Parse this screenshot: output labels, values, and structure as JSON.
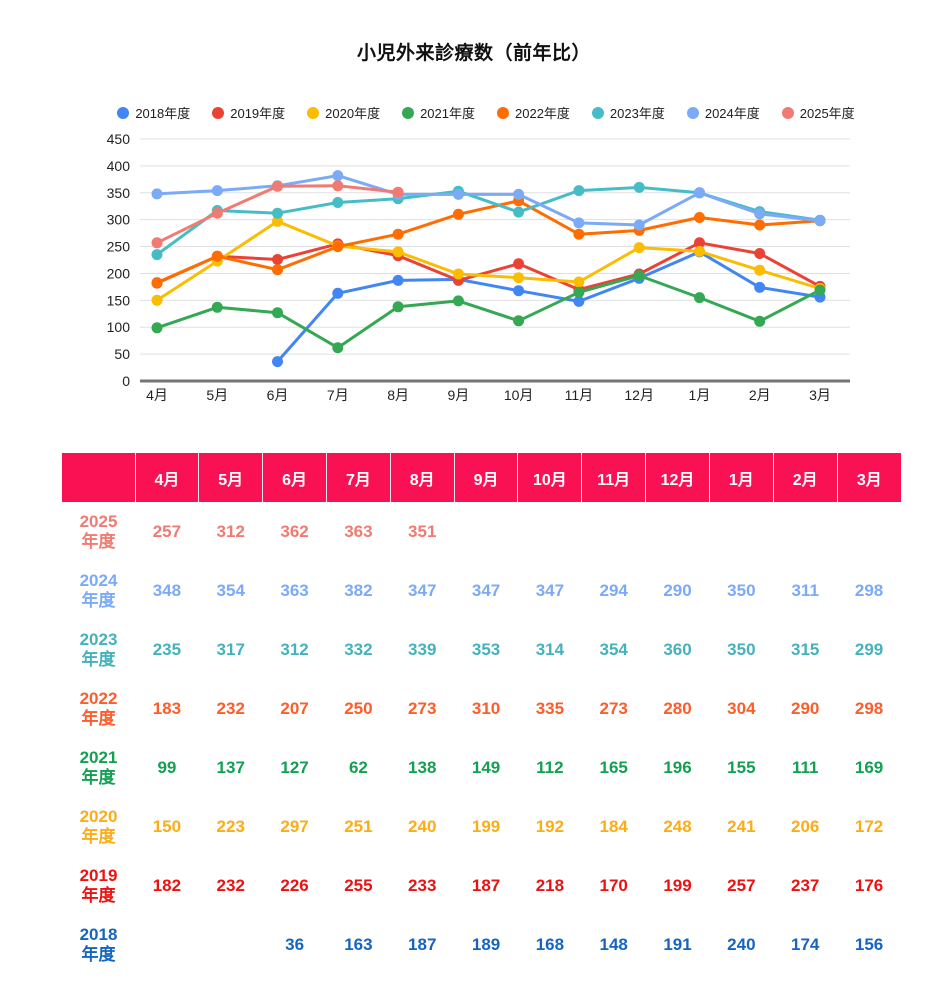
{
  "title": "小児外来診療数（前年比）",
  "chart_data": {
    "type": "line",
    "title": "小児外来診療数（前年比）",
    "categories": [
      "4月",
      "5月",
      "6月",
      "7月",
      "8月",
      "9月",
      "10月",
      "11月",
      "12月",
      "1月",
      "2月",
      "3月"
    ],
    "series": [
      {
        "name": "2018年度",
        "color": "#4285F4",
        "table_color": "#1565C0",
        "values": [
          null,
          null,
          36,
          163,
          187,
          189,
          168,
          148,
          191,
          240,
          174,
          156
        ]
      },
      {
        "name": "2019年度",
        "color": "#EA4335",
        "table_color": "#EE1111",
        "values": [
          182,
          232,
          226,
          255,
          233,
          187,
          218,
          170,
          199,
          257,
          237,
          176
        ]
      },
      {
        "name": "2020年度",
        "color": "#FBBC04",
        "table_color": "#FBAD18",
        "values": [
          150,
          223,
          297,
          251,
          240,
          199,
          192,
          184,
          248,
          241,
          206,
          172
        ]
      },
      {
        "name": "2021年度",
        "color": "#34A853",
        "table_color": "#12A053",
        "values": [
          99,
          137,
          127,
          62,
          138,
          149,
          112,
          165,
          196,
          155,
          111,
          169
        ]
      },
      {
        "name": "2022年度",
        "color": "#FF6D01",
        "table_color": "#FB5D2B",
        "values": [
          183,
          232,
          207,
          250,
          273,
          310,
          335,
          273,
          280,
          304,
          290,
          298
        ]
      },
      {
        "name": "2023年度",
        "color": "#46BDC6",
        "table_color": "#44B2BC",
        "values": [
          235,
          317,
          312,
          332,
          339,
          353,
          314,
          354,
          360,
          350,
          315,
          299
        ]
      },
      {
        "name": "2024年度",
        "color": "#7BAAF7",
        "table_color": "#7BAAF7",
        "values": [
          348,
          354,
          363,
          382,
          347,
          347,
          347,
          294,
          290,
          350,
          311,
          298
        ]
      },
      {
        "name": "2025年度",
        "color": "#F07B72",
        "table_color": "#F07B72",
        "values": [
          257,
          312,
          362,
          363,
          351,
          null,
          null,
          null,
          null,
          null,
          null,
          null
        ]
      }
    ],
    "ylim": [
      0,
      450
    ],
    "y_ticks": [
      0,
      50,
      100,
      150,
      200,
      250,
      300,
      350,
      400,
      450
    ],
    "grid": true,
    "legend_position": "top",
    "xlabel": "",
    "ylabel": ""
  },
  "table": {
    "corner_label": "",
    "row_suffix": "年度",
    "header_bg": "#FA1154",
    "header_text_color": "#FFFFFF"
  },
  "colors": {
    "background": "#FFFFFF",
    "grid": "#E0E0E0",
    "baseline": "#757575",
    "axis_label": "#222222"
  }
}
